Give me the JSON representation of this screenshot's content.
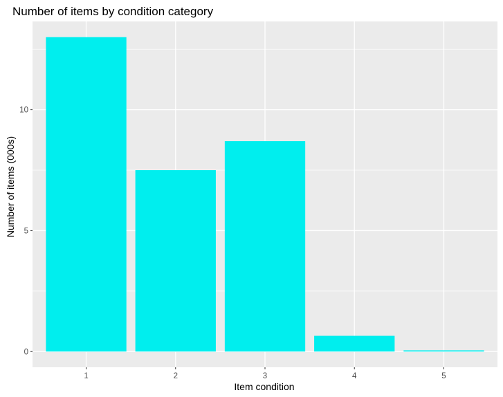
{
  "chart_data": {
    "type": "bar",
    "title": "Number of items by condition category",
    "xlabel": "Item condition",
    "ylabel": "Number of items (000s)",
    "categories": [
      "1",
      "2",
      "3",
      "4",
      "5"
    ],
    "values": [
      13.0,
      7.5,
      8.7,
      0.65,
      0.05
    ],
    "yticks": [
      0,
      5,
      10
    ],
    "ylim": [
      -0.65,
      13.65
    ],
    "grid": true,
    "legend": "none",
    "colors": {
      "bar": "#00EEEE",
      "panel_background": "#EBEBEB",
      "grid": "#FFFFFF"
    }
  }
}
